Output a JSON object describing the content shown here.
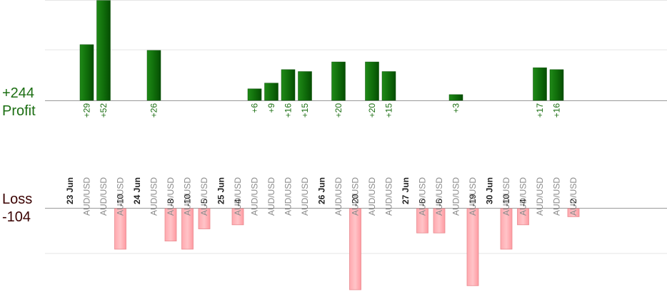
{
  "summary": {
    "profit_total": "+244",
    "profit_label": "Profit",
    "loss_label": "Loss",
    "loss_total": "-104"
  },
  "chart_data": {
    "type": "bar",
    "profit_color": "#0f6b0a",
    "loss_color": "#ffb3b8",
    "profit_label_color": "#1b6e12",
    "date_labels": [
      "23 Jun",
      "24 Jun",
      "25 Jun",
      "26 Jun",
      "27 Jun",
      "30 Jun"
    ],
    "columns": [
      {
        "date": "23 Jun"
      },
      {
        "pair": "AUD/USD",
        "value": 29,
        "label": "+29"
      },
      {
        "pair": "AUD/USD",
        "value": 52,
        "label": "+52"
      },
      {
        "pair": "AUD/USD",
        "value": -10,
        "label": "-10"
      },
      {
        "date": "24 Jun"
      },
      {
        "pair": "AUD/USD",
        "value": 26,
        "label": "+26"
      },
      {
        "pair": "AUD/USD",
        "value": -8,
        "label": "-8"
      },
      {
        "pair": "AUD/USD",
        "value": -10,
        "label": "-10"
      },
      {
        "pair": "AUD/USD",
        "value": -5,
        "label": "-5"
      },
      {
        "date": "25 Jun"
      },
      {
        "pair": "AUD/USD",
        "value": -4,
        "label": "-4"
      },
      {
        "pair": "AUD/USD",
        "value": 6,
        "label": "+6"
      },
      {
        "pair": "AUD/USD",
        "value": 9,
        "label": "+9"
      },
      {
        "pair": "AUD/USD",
        "value": 16,
        "label": "+16"
      },
      {
        "pair": "AUD/USD",
        "value": 15,
        "label": "+15"
      },
      {
        "date": "26 Jun"
      },
      {
        "pair": "AUD/USD",
        "value": 20,
        "label": "+20"
      },
      {
        "pair": "AUD/USD",
        "value": -20,
        "label": "-20"
      },
      {
        "pair": "AUD/USD",
        "value": 20,
        "label": "+20"
      },
      {
        "pair": "AUD/USD",
        "value": 15,
        "label": "+15"
      },
      {
        "date": "27 Jun"
      },
      {
        "pair": "AUD/USD",
        "value": -6,
        "label": "-6"
      },
      {
        "pair": "AUD/USD",
        "value": -6,
        "label": "-6"
      },
      {
        "pair": "AUD/USD",
        "value": 3,
        "label": "+3"
      },
      {
        "pair": "AUD/USD",
        "value": -19,
        "label": "-19"
      },
      {
        "date": "30 Jun"
      },
      {
        "pair": "AUD/USD",
        "value": -10,
        "label": "-10"
      },
      {
        "pair": "AUD/USD",
        "value": -4,
        "label": "-4"
      },
      {
        "pair": "AUD/USD",
        "value": 17,
        "label": "+17"
      },
      {
        "pair": "AUD/USD",
        "value": 16,
        "label": "+16"
      },
      {
        "pair": "AUD/USD",
        "value": -2,
        "label": "-2"
      }
    ]
  }
}
